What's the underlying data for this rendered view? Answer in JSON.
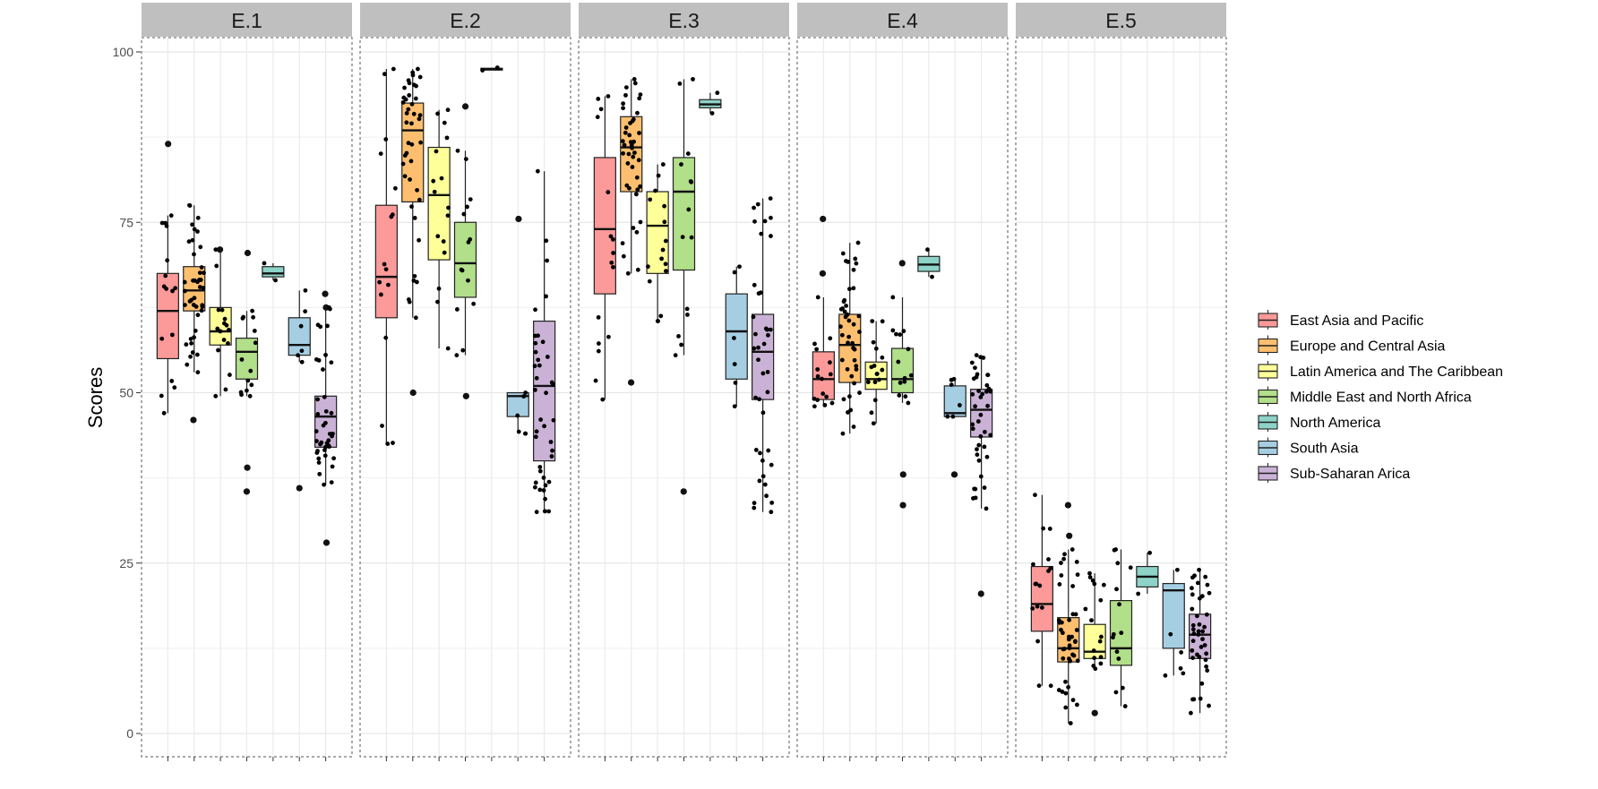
{
  "chart_data": {
    "type": "boxplot",
    "ylabel": "Scores",
    "ylim": [
      0,
      100
    ],
    "yticks": [
      0,
      25,
      50,
      75,
      100
    ],
    "grid": true,
    "legend_position": "right",
    "facets": [
      "E.1",
      "E.2",
      "E.3",
      "E.4",
      "E.5"
    ],
    "groups": [
      {
        "name": "East Asia and Pacific",
        "color": "#fb9a99"
      },
      {
        "name": "Europe and Central Asia",
        "color": "#fdbf6f"
      },
      {
        "name": "Latin America and The Caribbean",
        "color": "#ffff99"
      },
      {
        "name": "Middle East and North Africa",
        "color": "#b2df8a"
      },
      {
        "name": "North America",
        "color": "#8dd3c7"
      },
      {
        "name": "South Asia",
        "color": "#a6cee3"
      },
      {
        "name": "Sub-Saharan Arica",
        "color": "#cab2d6"
      }
    ],
    "boxes": {
      "E.1": [
        {
          "group": "East Asia and Pacific",
          "min": 47,
          "q1": 55,
          "median": 62,
          "q3": 67.5,
          "max": 76,
          "n": 16,
          "outliers": [
            86.5
          ]
        },
        {
          "group": "Europe and Central Asia",
          "min": 53,
          "q1": 62,
          "median": 65,
          "q3": 68.5,
          "max": 77.5,
          "n": 42,
          "outliers": [
            46
          ]
        },
        {
          "group": "Latin America and The Caribbean",
          "min": 49.5,
          "q1": 57,
          "median": 59,
          "q3": 62.5,
          "max": 71,
          "n": 16,
          "outliers": [
            71
          ]
        },
        {
          "group": "Middle East and North Africa",
          "min": 49.5,
          "q1": 52,
          "median": 56,
          "q3": 58,
          "max": 62,
          "n": 14,
          "outliers": [
            70.5,
            39,
            35.5
          ]
        },
        {
          "group": "North America",
          "min": 66.5,
          "q1": 67,
          "median": 67.5,
          "q3": 68.5,
          "max": 69,
          "n": 2,
          "outliers": []
        },
        {
          "group": "South Asia",
          "min": 54.5,
          "q1": 55.5,
          "median": 57,
          "q3": 61,
          "max": 65,
          "n": 6,
          "outliers": [
            36
          ]
        },
        {
          "group": "Sub-Saharan Arica",
          "min": 36.5,
          "q1": 42,
          "median": 46.5,
          "q3": 49.5,
          "max": 62.5,
          "n": 40,
          "outliers": [
            64.5,
            62.5,
            28
          ]
        }
      ],
      "E.2": [
        {
          "group": "East Asia and Pacific",
          "min": 42.5,
          "q1": 61,
          "median": 67,
          "q3": 77.5,
          "max": 97.5,
          "n": 16,
          "outliers": []
        },
        {
          "group": "Europe and Central Asia",
          "min": 61,
          "q1": 78,
          "median": 88.5,
          "q3": 92.5,
          "max": 97.5,
          "n": 42,
          "outliers": [
            50
          ]
        },
        {
          "group": "Latin America and The Caribbean",
          "min": 56.5,
          "q1": 69.5,
          "median": 79,
          "q3": 86,
          "max": 91.5,
          "n": 16,
          "outliers": []
        },
        {
          "group": "Middle East and North Africa",
          "min": 55.5,
          "q1": 64,
          "median": 69,
          "q3": 75,
          "max": 85.5,
          "n": 14,
          "outliers": [
            92,
            49.5
          ]
        },
        {
          "group": "North America",
          "min": 97.3,
          "q1": 97.4,
          "median": 97.5,
          "q3": 97.6,
          "max": 97.7,
          "n": 2,
          "outliers": []
        },
        {
          "group": "South Asia",
          "min": 44,
          "q1": 46.5,
          "median": 49.5,
          "q3": 50,
          "max": 50,
          "n": 6,
          "outliers": [
            75.5
          ]
        },
        {
          "group": "Sub-Saharan Arica",
          "min": 32.5,
          "q1": 40,
          "median": 51,
          "q3": 60.5,
          "max": 82.5,
          "n": 40,
          "outliers": []
        }
      ],
      "E.3": [
        {
          "group": "East Asia and Pacific",
          "min": 49,
          "q1": 64.5,
          "median": 74,
          "q3": 84.5,
          "max": 93.5,
          "n": 16,
          "outliers": []
        },
        {
          "group": "Europe and Central Asia",
          "min": 67.5,
          "q1": 79.5,
          "median": 86,
          "q3": 90.5,
          "max": 96,
          "n": 42,
          "outliers": [
            51.5
          ]
        },
        {
          "group": "Latin America and The Caribbean",
          "min": 60.5,
          "q1": 67.5,
          "median": 74.5,
          "q3": 79.5,
          "max": 83.5,
          "n": 16,
          "outliers": []
        },
        {
          "group": "Middle East and North Africa",
          "min": 55.5,
          "q1": 68,
          "median": 79.5,
          "q3": 84.5,
          "max": 96,
          "n": 14,
          "outliers": [
            35.5
          ]
        },
        {
          "group": "North America",
          "min": 91,
          "q1": 91.8,
          "median": 92.3,
          "q3": 93,
          "max": 94,
          "n": 2,
          "outliers": []
        },
        {
          "group": "South Asia",
          "min": 48,
          "q1": 52,
          "median": 59,
          "q3": 64.5,
          "max": 68.5,
          "n": 6,
          "outliers": []
        },
        {
          "group": "Sub-Saharan Arica",
          "min": 32.5,
          "q1": 49,
          "median": 56,
          "q3": 61.5,
          "max": 78.5,
          "n": 40,
          "outliers": []
        }
      ],
      "E.4": [
        {
          "group": "East Asia and Pacific",
          "min": 48,
          "q1": 49,
          "median": 52,
          "q3": 56,
          "max": 64,
          "n": 16,
          "outliers": [
            75.5,
            67.5
          ]
        },
        {
          "group": "Europe and Central Asia",
          "min": 44,
          "q1": 51.5,
          "median": 57,
          "q3": 61.5,
          "max": 72,
          "n": 42,
          "outliers": []
        },
        {
          "group": "Latin America and The Caribbean",
          "min": 45.5,
          "q1": 50.5,
          "median": 52,
          "q3": 54.5,
          "max": 60.5,
          "n": 16,
          "outliers": []
        },
        {
          "group": "Middle East and North Africa",
          "min": 48.5,
          "q1": 50,
          "median": 52,
          "q3": 56.5,
          "max": 64,
          "n": 14,
          "outliers": [
            69,
            38,
            33.5
          ]
        },
        {
          "group": "North America",
          "min": 67,
          "q1": 67.8,
          "median": 68.8,
          "q3": 70,
          "max": 71,
          "n": 2,
          "outliers": []
        },
        {
          "group": "South Asia",
          "min": 46.5,
          "q1": 46.5,
          "median": 47,
          "q3": 51,
          "max": 52,
          "n": 6,
          "outliers": [
            38
          ]
        },
        {
          "group": "Sub-Saharan Arica",
          "min": 33,
          "q1": 43.5,
          "median": 47.5,
          "q3": 50.5,
          "max": 55.5,
          "n": 40,
          "outliers": [
            20.5
          ]
        }
      ],
      "E.5": [
        {
          "group": "East Asia and Pacific",
          "min": 7,
          "q1": 15,
          "median": 19,
          "q3": 24.5,
          "max": 35,
          "n": 16,
          "outliers": []
        },
        {
          "group": "Europe and Central Asia",
          "min": 1.5,
          "q1": 10.5,
          "median": 12.5,
          "q3": 17,
          "max": 27,
          "n": 42,
          "outliers": [
            33.5,
            29
          ]
        },
        {
          "group": "Latin America and The Caribbean",
          "min": 9.5,
          "q1": 11,
          "median": 12,
          "q3": 16,
          "max": 23.5,
          "n": 16,
          "outliers": [
            3
          ]
        },
        {
          "group": "Middle East and North Africa",
          "min": 4,
          "q1": 10,
          "median": 12.5,
          "q3": 19.5,
          "max": 27,
          "n": 14,
          "outliers": []
        },
        {
          "group": "North America",
          "min": 20.5,
          "q1": 21.5,
          "median": 23,
          "q3": 24.5,
          "max": 26.5,
          "n": 2,
          "outliers": []
        },
        {
          "group": "South Asia",
          "min": 8.5,
          "q1": 12.5,
          "median": 21,
          "q3": 22,
          "max": 24,
          "n": 6,
          "outliers": []
        },
        {
          "group": "Sub-Saharan Arica",
          "min": 3,
          "q1": 11,
          "median": 14.5,
          "q3": 17.5,
          "max": 24,
          "n": 40,
          "outliers": []
        }
      ]
    }
  }
}
